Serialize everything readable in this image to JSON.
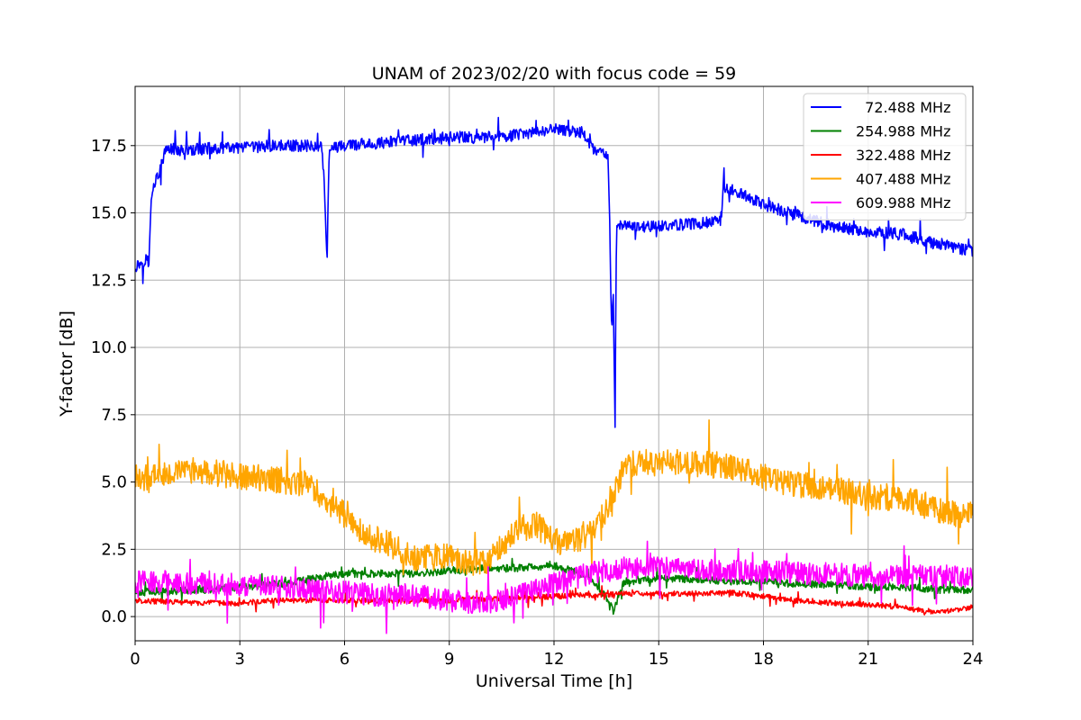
{
  "chart_data": {
    "type": "line",
    "title": "UNAM of 2023/02/20 with focus code = 59",
    "xlabel": "Universal Time [h]",
    "ylabel": "Y-factor [dB]",
    "xlim": [
      0,
      24
    ],
    "ylim": [
      -0.9,
      19.7
    ],
    "xticks": [
      0,
      3,
      6,
      9,
      12,
      15,
      18,
      21,
      24
    ],
    "xtick_labels": [
      "0",
      "3",
      "6",
      "9",
      "12",
      "15",
      "18",
      "21",
      "24"
    ],
    "yticks": [
      0.0,
      2.5,
      5.0,
      7.5,
      10.0,
      12.5,
      15.0,
      17.5
    ],
    "ytick_labels": [
      "0.0",
      "2.5",
      "5.0",
      "7.5",
      "10.0",
      "12.5",
      "15.0",
      "17.5"
    ],
    "grid": true,
    "legend_position": "top-right",
    "series": [
      {
        "name": "  72.488 MHz",
        "color": "#0000ff",
        "noise": 0.22,
        "points": [
          [
            0.0,
            13.0
          ],
          [
            0.35,
            13.3
          ],
          [
            0.4,
            13.1
          ],
          [
            0.45,
            15.3
          ],
          [
            0.5,
            16.0
          ],
          [
            0.7,
            16.5
          ],
          [
            0.8,
            17.0
          ],
          [
            0.9,
            17.4
          ],
          [
            1.5,
            17.3
          ],
          [
            2.0,
            17.4
          ],
          [
            3.0,
            17.4
          ],
          [
            4.0,
            17.5
          ],
          [
            5.0,
            17.5
          ],
          [
            5.35,
            17.5
          ],
          [
            5.4,
            16.5
          ],
          [
            5.45,
            15.0
          ],
          [
            5.5,
            13.2
          ],
          [
            5.55,
            17.0
          ],
          [
            5.6,
            17.4
          ],
          [
            6.0,
            17.5
          ],
          [
            7.0,
            17.6
          ],
          [
            8.0,
            17.7
          ],
          [
            9.0,
            17.8
          ],
          [
            10.0,
            17.8
          ],
          [
            11.0,
            17.9
          ],
          [
            12.0,
            18.1
          ],
          [
            12.8,
            18.0
          ],
          [
            13.0,
            17.6
          ],
          [
            13.2,
            17.2
          ],
          [
            13.4,
            17.3
          ],
          [
            13.55,
            17.0
          ],
          [
            13.6,
            14.5
          ],
          [
            13.65,
            10.5
          ],
          [
            13.7,
            12.0
          ],
          [
            13.75,
            7.0
          ],
          [
            13.78,
            14.0
          ],
          [
            13.8,
            14.5
          ],
          [
            14.5,
            14.5
          ],
          [
            15.0,
            14.5
          ],
          [
            16.0,
            14.6
          ],
          [
            16.8,
            14.7
          ],
          [
            16.85,
            16.0
          ],
          [
            17.5,
            15.6
          ],
          [
            18.0,
            15.3
          ],
          [
            19.0,
            14.9
          ],
          [
            20.0,
            14.5
          ],
          [
            21.0,
            14.3
          ],
          [
            22.0,
            14.2
          ],
          [
            22.8,
            13.9
          ],
          [
            23.5,
            13.7
          ],
          [
            24.0,
            13.6
          ]
        ]
      },
      {
        "name": "254.988 MHz",
        "color": "#008000",
        "noise": 0.14,
        "points": [
          [
            0.0,
            0.9
          ],
          [
            2.0,
            1.0
          ],
          [
            4.0,
            1.2
          ],
          [
            5.0,
            1.4
          ],
          [
            6.0,
            1.6
          ],
          [
            7.0,
            1.6
          ],
          [
            8.0,
            1.6
          ],
          [
            9.0,
            1.7
          ],
          [
            10.0,
            1.8
          ],
          [
            11.0,
            1.8
          ],
          [
            12.0,
            1.9
          ],
          [
            13.0,
            1.5
          ],
          [
            13.5,
            0.7
          ],
          [
            13.7,
            0.2
          ],
          [
            14.0,
            1.3
          ],
          [
            15.0,
            1.4
          ],
          [
            16.0,
            1.4
          ],
          [
            17.0,
            1.3
          ],
          [
            18.0,
            1.3
          ],
          [
            19.0,
            1.2
          ],
          [
            20.0,
            1.2
          ],
          [
            21.0,
            1.1
          ],
          [
            22.0,
            1.1
          ],
          [
            23.0,
            1.0
          ],
          [
            24.0,
            1.0
          ]
        ]
      },
      {
        "name": "322.488 MHz",
        "color": "#ff0000",
        "noise": 0.1,
        "points": [
          [
            0.0,
            0.6
          ],
          [
            1.0,
            0.55
          ],
          [
            2.0,
            0.5
          ],
          [
            3.0,
            0.5
          ],
          [
            4.0,
            0.6
          ],
          [
            5.0,
            0.6
          ],
          [
            6.0,
            0.6
          ],
          [
            7.0,
            0.6
          ],
          [
            8.0,
            0.6
          ],
          [
            9.0,
            0.6
          ],
          [
            10.0,
            0.65
          ],
          [
            11.0,
            0.7
          ],
          [
            12.0,
            0.75
          ],
          [
            13.0,
            0.8
          ],
          [
            14.0,
            0.85
          ],
          [
            15.0,
            0.85
          ],
          [
            16.0,
            0.85
          ],
          [
            17.0,
            0.9
          ],
          [
            18.0,
            0.75
          ],
          [
            19.0,
            0.6
          ],
          [
            20.0,
            0.5
          ],
          [
            21.0,
            0.45
          ],
          [
            22.0,
            0.35
          ],
          [
            23.0,
            0.15
          ],
          [
            24.0,
            0.35
          ]
        ]
      },
      {
        "name": "407.488 MHz",
        "color": "#ffa500",
        "noise": 0.5,
        "points": [
          [
            0.0,
            5.0
          ],
          [
            0.5,
            5.3
          ],
          [
            1.0,
            5.4
          ],
          [
            2.0,
            5.4
          ],
          [
            3.0,
            5.2
          ],
          [
            4.0,
            5.1
          ],
          [
            5.0,
            4.9
          ],
          [
            5.5,
            4.3
          ],
          [
            6.0,
            3.8
          ],
          [
            6.5,
            3.2
          ],
          [
            7.0,
            2.8
          ],
          [
            7.5,
            2.6
          ],
          [
            8.0,
            2.2
          ],
          [
            8.5,
            2.2
          ],
          [
            9.0,
            2.2
          ],
          [
            9.5,
            2.0
          ],
          [
            10.0,
            2.0
          ],
          [
            10.5,
            2.6
          ],
          [
            11.0,
            3.4
          ],
          [
            11.5,
            3.4
          ],
          [
            12.0,
            2.8
          ],
          [
            12.5,
            2.7
          ],
          [
            13.0,
            3.0
          ],
          [
            13.5,
            4.0
          ],
          [
            14.0,
            5.5
          ],
          [
            14.5,
            5.8
          ],
          [
            15.0,
            5.7
          ],
          [
            16.0,
            5.7
          ],
          [
            17.0,
            5.6
          ],
          [
            18.0,
            5.2
          ],
          [
            19.0,
            4.9
          ],
          [
            20.0,
            4.7
          ],
          [
            21.0,
            4.5
          ],
          [
            22.0,
            4.4
          ],
          [
            23.0,
            4.0
          ],
          [
            23.5,
            3.8
          ],
          [
            24.0,
            3.8
          ]
        ]
      },
      {
        "name": "609.988 MHz",
        "color": "#ff00ff",
        "noise": 0.42,
        "points": [
          [
            0.0,
            1.3
          ],
          [
            1.0,
            1.3
          ],
          [
            2.0,
            1.2
          ],
          [
            3.0,
            1.2
          ],
          [
            4.0,
            1.1
          ],
          [
            5.0,
            1.0
          ],
          [
            6.0,
            0.9
          ],
          [
            7.0,
            0.8
          ],
          [
            8.0,
            0.8
          ],
          [
            9.0,
            0.6
          ],
          [
            10.0,
            0.5
          ],
          [
            11.0,
            0.8
          ],
          [
            12.0,
            1.2
          ],
          [
            13.0,
            1.6
          ],
          [
            14.0,
            1.8
          ],
          [
            15.0,
            1.8
          ],
          [
            16.0,
            1.8
          ],
          [
            17.0,
            1.7
          ],
          [
            18.0,
            1.7
          ],
          [
            19.0,
            1.6
          ],
          [
            20.0,
            1.6
          ],
          [
            21.0,
            1.5
          ],
          [
            22.0,
            1.5
          ],
          [
            23.0,
            1.5
          ],
          [
            24.0,
            1.5
          ]
        ]
      }
    ]
  }
}
